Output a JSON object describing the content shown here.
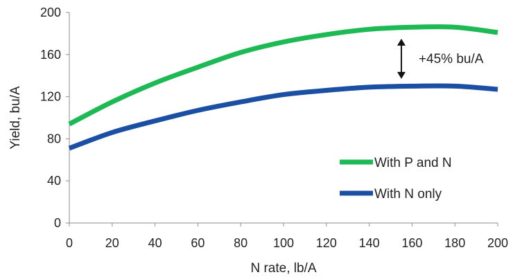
{
  "chart_data": {
    "type": "line",
    "title": "",
    "xlabel": "N rate, lb/A",
    "ylabel": "Yield, bu/A",
    "x": [
      0,
      20,
      40,
      60,
      80,
      100,
      120,
      140,
      160,
      180,
      200
    ],
    "xlim": [
      0,
      200
    ],
    "ylim": [
      0,
      200
    ],
    "x_ticks": [
      "0",
      "20",
      "40",
      "60",
      "80",
      "100",
      "120",
      "140",
      "160",
      "180",
      "200"
    ],
    "y_ticks": [
      "0",
      "40",
      "80",
      "120",
      "160",
      "200"
    ],
    "grid": false,
    "legend_position": "bottom-right",
    "series": [
      {
        "name": "With P and N",
        "color": "#1db954",
        "values": [
          94,
          115,
          133,
          148,
          162,
          172,
          179,
          184,
          186,
          186,
          181
        ]
      },
      {
        "name": "With N only",
        "color": "#1a4fa3",
        "values": [
          71,
          86,
          97,
          107,
          115,
          122,
          126,
          129,
          130,
          130,
          127
        ]
      }
    ],
    "annotations": [
      {
        "text": "+45% bu/A",
        "x": 155,
        "y_from": 133,
        "y_to": 179
      }
    ]
  }
}
